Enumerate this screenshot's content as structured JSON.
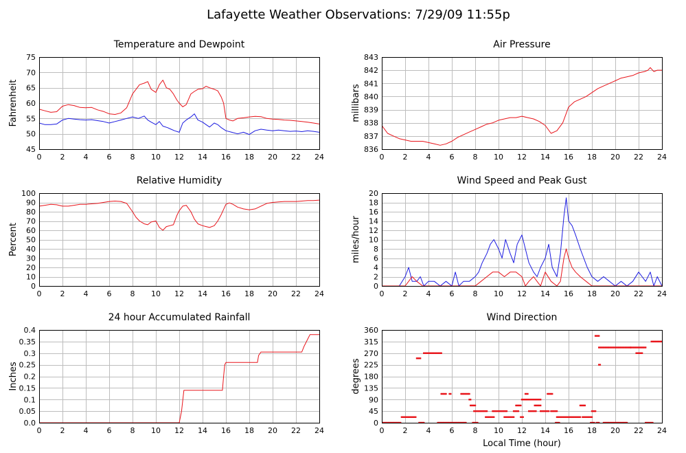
{
  "page_title": "Lafayette Weather Observations: 7/29/09 11:55p",
  "colors": {
    "red": "#e8141a",
    "blue": "#1a1ae0"
  },
  "chart_data": [
    {
      "id": "temp",
      "type": "line",
      "title": "Temperature and Dewpoint",
      "xlabel": "",
      "ylabel": "Fahrenheit",
      "xlim": [
        0,
        24
      ],
      "ylim": [
        45,
        75
      ],
      "xticks": [
        0,
        2,
        4,
        6,
        8,
        10,
        12,
        14,
        16,
        18,
        20,
        22,
        24
      ],
      "yticks": [
        45,
        50,
        55,
        60,
        65,
        70,
        75
      ],
      "grid": true,
      "series": [
        {
          "color": "#e8141a",
          "x": [
            0,
            0.5,
            1,
            1.5,
            2,
            2.5,
            3,
            3.5,
            4,
            4.5,
            5,
            5.5,
            6,
            6.5,
            7,
            7.5,
            8,
            8.3,
            8.6,
            9,
            9.3,
            9.6,
            10,
            10.3,
            10.6,
            10.9,
            11.2,
            11.5,
            11.8,
            12,
            12.3,
            12.6,
            13,
            13.3,
            13.6,
            14,
            14.3,
            14.6,
            15,
            15.3,
            15.6,
            15.8,
            16,
            16.3,
            16.6,
            17,
            17.5,
            18,
            18.5,
            19,
            19.5,
            20,
            20.5,
            21,
            21.5,
            22,
            22.5,
            23,
            23.5,
            24
          ],
          "y": [
            58,
            57.5,
            57,
            57.2,
            59,
            59.5,
            59.2,
            58.6,
            58.5,
            58.6,
            57.8,
            57.3,
            56.5,
            56.3,
            56.8,
            58.5,
            63,
            64.5,
            66,
            66.5,
            67,
            64.5,
            63.5,
            66,
            67.5,
            65,
            64.5,
            63,
            61,
            60,
            58.8,
            59.5,
            63,
            63.8,
            64.5,
            64.7,
            65.5,
            65,
            64.5,
            64,
            62,
            60,
            55,
            54.5,
            54.2,
            55,
            55.2,
            55.5,
            55.7,
            55.6,
            55,
            54.8,
            54.7,
            54.5,
            54.4,
            54.2,
            54,
            53.8,
            53.5,
            53.2
          ]
        },
        {
          "color": "#1a1ae0",
          "x": [
            0,
            0.5,
            1,
            1.5,
            2,
            2.5,
            3,
            3.5,
            4,
            4.5,
            5,
            5.5,
            6,
            6.5,
            7,
            7.5,
            8,
            8.5,
            9,
            9.3,
            9.6,
            10,
            10.3,
            10.6,
            11,
            11.3,
            11.6,
            12,
            12.3,
            12.6,
            13,
            13.3,
            13.6,
            14,
            14.3,
            14.6,
            15,
            15.3,
            15.6,
            16,
            16.5,
            17,
            17.5,
            18,
            18.5,
            19,
            19.5,
            20,
            20.5,
            21,
            21.5,
            22,
            22.5,
            23,
            23.5,
            24
          ],
          "y": [
            53.5,
            53,
            53,
            53.2,
            54.5,
            55,
            54.8,
            54.6,
            54.5,
            54.6,
            54.3,
            54,
            53.5,
            54,
            54.5,
            55,
            55.5,
            55,
            55.8,
            54.5,
            53.8,
            53,
            54,
            52.5,
            52,
            51.5,
            51,
            50.5,
            53.5,
            54.5,
            55.5,
            56.5,
            54.5,
            53.8,
            53,
            52.2,
            53.5,
            53,
            52,
            51,
            50.5,
            50,
            50.5,
            49.8,
            51,
            51.5,
            51.2,
            51,
            51.2,
            51,
            50.8,
            50.9,
            50.7,
            51,
            50.8,
            50.5
          ]
        }
      ]
    },
    {
      "id": "pressure",
      "type": "line",
      "title": "Air Pressure",
      "xlabel": "",
      "ylabel": "millibars",
      "xlim": [
        0,
        24
      ],
      "ylim": [
        836,
        843
      ],
      "xticks": [
        0,
        2,
        4,
        6,
        8,
        10,
        12,
        14,
        16,
        18,
        20,
        22,
        24
      ],
      "yticks": [
        836,
        837,
        838,
        839,
        840,
        841,
        842,
        843
      ],
      "grid": true,
      "series": [
        {
          "color": "#e8141a",
          "x": [
            0,
            0.5,
            1,
            1.5,
            2,
            2.5,
            3,
            3.5,
            4,
            4.5,
            5,
            5.5,
            6,
            6.5,
            7,
            7.5,
            8,
            8.5,
            9,
            9.5,
            10,
            10.5,
            11,
            11.5,
            12,
            12.5,
            13,
            13.5,
            14,
            14.5,
            15,
            15.5,
            16,
            16.5,
            17,
            17.5,
            18,
            18.5,
            19,
            19.5,
            20,
            20.5,
            21,
            21.5,
            22,
            22.5,
            22.8,
            23,
            23.3,
            23.6,
            24
          ],
          "y": [
            837.8,
            837.2,
            837,
            836.8,
            836.7,
            836.6,
            836.6,
            836.6,
            836.5,
            836.4,
            836.3,
            836.4,
            836.6,
            836.9,
            837.1,
            837.3,
            837.5,
            837.7,
            837.9,
            838,
            838.2,
            838.3,
            838.4,
            838.4,
            838.5,
            838.4,
            838.3,
            838.1,
            837.8,
            837.2,
            837.4,
            838,
            839.2,
            839.6,
            839.8,
            840,
            840.3,
            840.6,
            840.8,
            841,
            841.2,
            841.4,
            841.5,
            841.6,
            841.8,
            841.9,
            842,
            842.2,
            841.9,
            842,
            842
          ]
        }
      ]
    },
    {
      "id": "humidity",
      "type": "line",
      "title": "Relative Humidity",
      "xlabel": "",
      "ylabel": "Percent",
      "xlim": [
        0,
        24
      ],
      "ylim": [
        0,
        100
      ],
      "xticks": [
        0,
        2,
        4,
        6,
        8,
        10,
        12,
        14,
        16,
        18,
        20,
        22,
        24
      ],
      "yticks": [
        0,
        10,
        20,
        30,
        40,
        50,
        60,
        70,
        80,
        90,
        100
      ],
      "grid": true,
      "series": [
        {
          "color": "#e8141a",
          "x": [
            0,
            0.5,
            1,
            1.5,
            2,
            2.5,
            3,
            3.5,
            4,
            4.5,
            5,
            5.5,
            6,
            6.5,
            7,
            7.5,
            8,
            8.3,
            8.6,
            9,
            9.3,
            9.6,
            10,
            10.3,
            10.6,
            10.9,
            11.2,
            11.5,
            11.8,
            12,
            12.3,
            12.6,
            13,
            13.3,
            13.6,
            14,
            14.3,
            14.6,
            15,
            15.3,
            15.6,
            16,
            16.3,
            16.6,
            17,
            17.5,
            18,
            18.5,
            19,
            19.5,
            20,
            20.5,
            21,
            21.5,
            22,
            22.5,
            23,
            23.5,
            24
          ],
          "y": [
            86,
            87,
            88,
            87.5,
            86,
            86,
            87,
            88,
            88,
            88.5,
            89,
            90,
            91,
            91.5,
            91,
            89,
            80,
            74,
            70,
            67,
            66,
            69,
            70,
            63,
            60,
            64,
            65,
            66,
            76,
            81,
            86,
            87,
            80,
            72,
            67,
            65,
            64,
            63,
            65,
            70,
            77,
            88,
            89.5,
            88,
            85,
            83,
            82,
            83,
            86,
            89,
            90,
            90.5,
            91,
            91,
            91,
            91.5,
            92,
            92,
            92.5
          ]
        }
      ]
    },
    {
      "id": "wind_speed",
      "type": "line",
      "title": "Wind Speed and Peak Gust",
      "xlabel": "",
      "ylabel": "miles/hour",
      "xlim": [
        0,
        24
      ],
      "ylim": [
        0,
        20
      ],
      "xticks": [
        0,
        2,
        4,
        6,
        8,
        10,
        12,
        14,
        16,
        18,
        20,
        22,
        24
      ],
      "yticks": [
        0,
        2,
        4,
        6,
        8,
        10,
        12,
        14,
        16,
        18,
        20
      ],
      "grid": true,
      "series": [
        {
          "color": "#1a1ae0",
          "x": [
            0,
            1.5,
            2,
            2.3,
            2.6,
            3,
            3.3,
            3.6,
            4,
            4.5,
            5,
            5.5,
            6,
            6.3,
            6.6,
            7,
            7.5,
            8,
            8.3,
            8.6,
            9,
            9.3,
            9.6,
            10,
            10.3,
            10.6,
            11,
            11.3,
            11.6,
            12,
            12.3,
            12.6,
            13,
            13.3,
            13.6,
            14,
            14.3,
            14.6,
            15,
            15.3,
            15.6,
            15.8,
            16,
            16.3,
            16.6,
            17,
            17.3,
            17.6,
            18,
            18.5,
            19,
            19.5,
            20,
            20.5,
            21,
            21.5,
            22,
            22.3,
            22.6,
            23,
            23.3,
            23.6,
            24
          ],
          "y": [
            0,
            0,
            2,
            4,
            1,
            1,
            2,
            0,
            1,
            1,
            0,
            1,
            0,
            3,
            0,
            1,
            1,
            2,
            3,
            5,
            7,
            9,
            10,
            8,
            6,
            10,
            7,
            5,
            9,
            11,
            8,
            5,
            3,
            2,
            4,
            6,
            9,
            4,
            2,
            7,
            15,
            19,
            14,
            13,
            11,
            8,
            6,
            4,
            2,
            1,
            2,
            1,
            0,
            1,
            0,
            1,
            3,
            2,
            1,
            3,
            0,
            2,
            0
          ]
        },
        {
          "color": "#e8141a",
          "x": [
            0,
            2,
            2.3,
            2.6,
            3,
            3.5,
            4,
            6,
            8,
            8.5,
            9,
            9.5,
            10,
            10.5,
            11,
            11.5,
            12,
            12.3,
            12.6,
            13,
            13.3,
            13.6,
            14,
            14.5,
            15,
            15.3,
            15.6,
            15.8,
            16,
            16.3,
            16.6,
            17,
            17.5,
            18,
            18.5,
            19,
            24
          ],
          "y": [
            0,
            0,
            1,
            2,
            1,
            0,
            0,
            0,
            0,
            1,
            2,
            3,
            3,
            2,
            3,
            3,
            2,
            0,
            1,
            2,
            1,
            0,
            3,
            1,
            0,
            1,
            6,
            8,
            6,
            4,
            3,
            2,
            1,
            0,
            0,
            0,
            0
          ]
        }
      ]
    },
    {
      "id": "rain",
      "type": "line",
      "title": "24 hour Accumulated Rainfall",
      "xlabel": "",
      "ylabel": "Inches",
      "xlim": [
        0,
        24
      ],
      "ylim": [
        0,
        0.4
      ],
      "xticks": [
        0,
        2,
        4,
        6,
        8,
        10,
        12,
        14,
        16,
        18,
        20,
        22,
        24
      ],
      "yticks": [
        0,
        0.05,
        0.1,
        0.15,
        0.2,
        0.25,
        0.3,
        0.35,
        0.4
      ],
      "ytick_labels": [
        "0.0",
        "0.05",
        "0.1",
        "0.15",
        "0.2",
        "0.25",
        "0.3",
        "0.35",
        "0.4"
      ],
      "grid": true,
      "series": [
        {
          "color": "#e8141a",
          "x": [
            0,
            12,
            12.2,
            12.4,
            15.7,
            15.8,
            15.9,
            16,
            18.7,
            18.8,
            19,
            22.5,
            22.7,
            23,
            23.2,
            24
          ],
          "y": [
            0,
            0,
            0.05,
            0.14,
            0.14,
            0.2,
            0.25,
            0.26,
            0.26,
            0.29,
            0.305,
            0.305,
            0.33,
            0.36,
            0.38,
            0.38
          ]
        }
      ]
    },
    {
      "id": "wind_dir",
      "type": "scatter",
      "title": "Wind Direction",
      "xlabel": "Local Time (hour)",
      "ylabel": "degrees",
      "xlim": [
        0,
        24
      ],
      "ylim": [
        0,
        360
      ],
      "xticks": [
        0,
        2,
        4,
        6,
        8,
        10,
        12,
        14,
        16,
        18,
        20,
        22,
        24
      ],
      "yticks": [
        0,
        45,
        90,
        135,
        180,
        225,
        270,
        315,
        360
      ],
      "grid": true,
      "series": [
        {
          "color": "#e8141a",
          "runs": [
            [
              0.0,
              1.6,
              0
            ],
            [
              1.7,
              2.9,
              22
            ],
            [
              3.0,
              3.3,
              250
            ],
            [
              3.2,
              3.6,
              0
            ],
            [
              3.6,
              5.1,
              270
            ],
            [
              4.8,
              5.8,
              0
            ],
            [
              5.1,
              5.5,
              112
            ],
            [
              5.8,
              5.9,
              112
            ],
            [
              5.9,
              7.2,
              0
            ],
            [
              6.8,
              7.5,
              112
            ],
            [
              7.5,
              7.6,
              90
            ],
            [
              7.6,
              8.0,
              67
            ],
            [
              7.8,
              8.2,
              0
            ],
            [
              7.9,
              9.0,
              45
            ],
            [
              8.9,
              9.6,
              22
            ],
            [
              9.5,
              10.7,
              45
            ],
            [
              10.5,
              11.3,
              22
            ],
            [
              11.3,
              11.7,
              45
            ],
            [
              11.5,
              11.9,
              67
            ],
            [
              11.9,
              12.1,
              22
            ],
            [
              12.0,
              12.4,
              90
            ],
            [
              12.3,
              12.5,
              112
            ],
            [
              12.5,
              13.6,
              90
            ],
            [
              12.6,
              13.2,
              45
            ],
            [
              13.1,
              13.6,
              67
            ],
            [
              13.6,
              14.3,
              45
            ],
            [
              14.2,
              14.6,
              112
            ],
            [
              14.5,
              15.0,
              45
            ],
            [
              14.9,
              15.2,
              0
            ],
            [
              15.0,
              17.0,
              22
            ],
            [
              17.0,
              17.4,
              67
            ],
            [
              17.2,
              18.0,
              22
            ],
            [
              18.0,
              18.3,
              45
            ],
            [
              17.9,
              18.2,
              0
            ],
            [
              18.3,
              18.6,
              337
            ],
            [
              18.6,
              18.7,
              225
            ],
            [
              18.4,
              18.6,
              0
            ],
            [
              18.6,
              21.3,
              292
            ],
            [
              19.0,
              21.0,
              0
            ],
            [
              21.3,
              22.6,
              292
            ],
            [
              21.8,
              22.3,
              270
            ],
            [
              22.6,
              23.2,
              0
            ],
            [
              23.1,
              24.0,
              315
            ]
          ]
        }
      ]
    }
  ]
}
